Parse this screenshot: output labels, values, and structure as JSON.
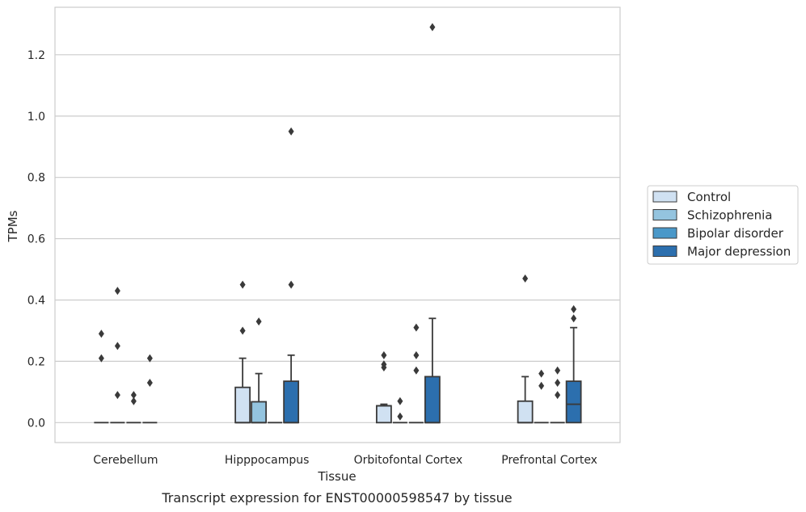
{
  "caption": "Transcript expression for ENST00000598547 by tissue",
  "chart_data": {
    "type": "box",
    "title": "",
    "xlabel": "Tissue",
    "ylabel": "TPMs",
    "ylim": [
      -0.065,
      1.355
    ],
    "yticks": [
      0.0,
      0.2,
      0.4,
      0.6,
      0.8,
      1.0,
      1.2
    ],
    "ytick_labels": [
      "0.0",
      "0.2",
      "0.4",
      "0.6",
      "0.8",
      "1.0",
      "1.2"
    ],
    "grid": "horizontal",
    "legend_position": "right",
    "categories": [
      "Cerebellum",
      "Hipppocampus",
      "Orbitofontal Cortex",
      "Prefrontal Cortex"
    ],
    "series": [
      {
        "name": "Control",
        "color": "#d0e1f2",
        "boxes": [
          {
            "q1": 0.0,
            "median": 0.0,
            "q3": 0.0,
            "whisker_low": 0.0,
            "whisker_high": 0.0,
            "outliers": [
              0.29,
              0.21
            ]
          },
          {
            "q1": 0.0,
            "median": 0.0,
            "q3": 0.115,
            "whisker_low": 0.0,
            "whisker_high": 0.21,
            "outliers": [
              0.45,
              0.3
            ]
          },
          {
            "q1": 0.0,
            "median": 0.055,
            "q3": 0.055,
            "whisker_low": 0.0,
            "whisker_high": 0.06,
            "outliers": [
              0.22,
              0.19,
              0.18
            ]
          },
          {
            "q1": 0.0,
            "median": 0.0,
            "q3": 0.07,
            "whisker_low": 0.0,
            "whisker_high": 0.15,
            "outliers": [
              0.47
            ]
          }
        ]
      },
      {
        "name": "Schizophrenia",
        "color": "#94c4df",
        "boxes": [
          {
            "q1": 0.0,
            "median": 0.0,
            "q3": 0.0,
            "whisker_low": 0.0,
            "whisker_high": 0.0,
            "outliers": [
              0.43,
              0.25,
              0.09
            ]
          },
          {
            "q1": 0.0,
            "median": 0.0,
            "q3": 0.068,
            "whisker_low": 0.0,
            "whisker_high": 0.16,
            "outliers": [
              0.33
            ]
          },
          {
            "q1": 0.0,
            "median": 0.0,
            "q3": 0.0,
            "whisker_low": 0.0,
            "whisker_high": 0.0,
            "outliers": [
              0.07,
              0.02
            ]
          },
          {
            "q1": 0.0,
            "median": 0.0,
            "q3": 0.0,
            "whisker_low": 0.0,
            "whisker_high": 0.0,
            "outliers": [
              0.16,
              0.12
            ]
          }
        ]
      },
      {
        "name": "Bipolar disorder",
        "color": "#4a98c9",
        "boxes": [
          {
            "q1": 0.0,
            "median": 0.0,
            "q3": 0.0,
            "whisker_low": 0.0,
            "whisker_high": 0.0,
            "outliers": [
              0.09,
              0.07
            ]
          },
          {
            "q1": 0.0,
            "median": 0.0,
            "q3": 0.0,
            "whisker_low": 0.0,
            "whisker_high": 0.0,
            "outliers": []
          },
          {
            "q1": 0.0,
            "median": 0.0,
            "q3": 0.0,
            "whisker_low": 0.0,
            "whisker_high": 0.0,
            "outliers": [
              0.31,
              0.22,
              0.17
            ]
          },
          {
            "q1": 0.0,
            "median": 0.0,
            "q3": 0.0,
            "whisker_low": 0.0,
            "whisker_high": 0.0,
            "outliers": [
              0.17,
              0.13,
              0.09
            ]
          }
        ]
      },
      {
        "name": "Major depression",
        "color": "#2c6fae",
        "boxes": [
          {
            "q1": 0.0,
            "median": 0.0,
            "q3": 0.0,
            "whisker_low": 0.0,
            "whisker_high": 0.0,
            "outliers": [
              0.21,
              0.13
            ]
          },
          {
            "q1": 0.0,
            "median": 0.0,
            "q3": 0.135,
            "whisker_low": 0.0,
            "whisker_high": 0.22,
            "outliers": [
              0.95,
              0.45
            ]
          },
          {
            "q1": 0.0,
            "median": 0.0,
            "q3": 0.15,
            "whisker_low": 0.0,
            "whisker_high": 0.34,
            "outliers": [
              1.29
            ]
          },
          {
            "q1": 0.0,
            "median": 0.06,
            "q3": 0.135,
            "whisker_low": 0.0,
            "whisker_high": 0.31,
            "outliers": [
              0.37,
              0.34
            ]
          }
        ]
      }
    ]
  }
}
